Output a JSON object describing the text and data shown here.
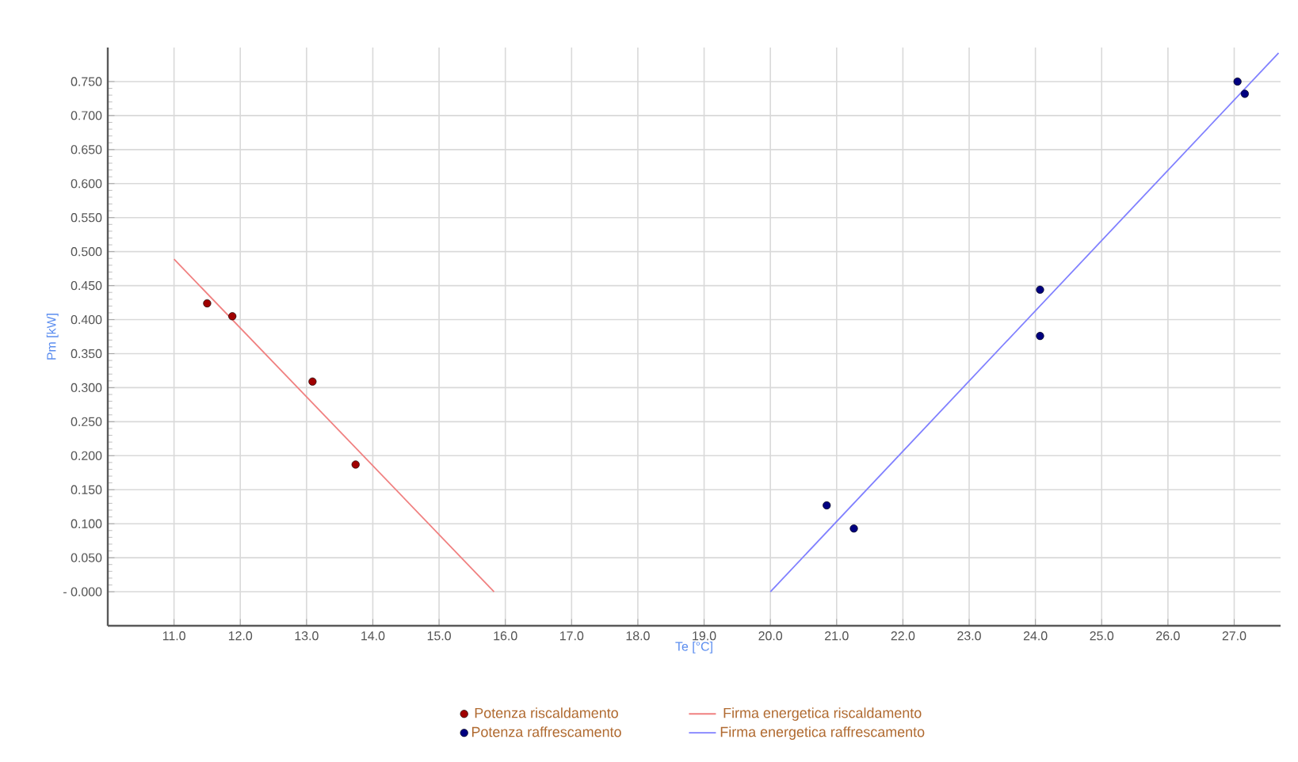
{
  "chart_data": {
    "type": "scatter",
    "xlabel": "Te [°C]",
    "ylabel": "Pm [kW]",
    "xlim": [
      10.0,
      27.7
    ],
    "ylim": [
      -0.05,
      0.8
    ],
    "xticks": [
      {
        "value": 11,
        "label": "11.0"
      },
      {
        "value": 12,
        "label": "12.0"
      },
      {
        "value": 13,
        "label": "13.0"
      },
      {
        "value": 14,
        "label": "14.0"
      },
      {
        "value": 15,
        "label": "15.0"
      },
      {
        "value": 16,
        "label": "16.0"
      },
      {
        "value": 17,
        "label": "17.0"
      },
      {
        "value": 18,
        "label": "18.0"
      },
      {
        "value": 19,
        "label": "19.0"
      },
      {
        "value": 20,
        "label": "20.0"
      },
      {
        "value": 21,
        "label": "21.0"
      },
      {
        "value": 22,
        "label": "22.0"
      },
      {
        "value": 23,
        "label": "23.0"
      },
      {
        "value": 24,
        "label": "24.0"
      },
      {
        "value": 25,
        "label": "25.0"
      },
      {
        "value": 26,
        "label": "26.0"
      },
      {
        "value": 27,
        "label": "27.0"
      }
    ],
    "yticks": [
      {
        "value": 0,
        "label": "- 0.000"
      },
      {
        "value": 0.05,
        "label": "0.050"
      },
      {
        "value": 0.1,
        "label": "0.100"
      },
      {
        "value": 0.15,
        "label": "0.150"
      },
      {
        "value": 0.2,
        "label": "0.200"
      },
      {
        "value": 0.25,
        "label": "0.250"
      },
      {
        "value": 0.3,
        "label": "0.300"
      },
      {
        "value": 0.35,
        "label": "0.350"
      },
      {
        "value": 0.4,
        "label": "0.400"
      },
      {
        "value": 0.45,
        "label": "0.450"
      },
      {
        "value": 0.5,
        "label": "0.500"
      },
      {
        "value": 0.55,
        "label": "0.550"
      },
      {
        "value": 0.6,
        "label": "0.600"
      },
      {
        "value": 0.65,
        "label": "0.650"
      },
      {
        "value": 0.7,
        "label": "0.700"
      },
      {
        "value": 0.75,
        "label": "0.750"
      }
    ],
    "grid": true,
    "legend": "bottom",
    "series": [
      {
        "name": "Potenza riscaldamento",
        "color": "#a00000",
        "x": [
          11.5,
          11.88,
          13.09,
          13.74
        ],
        "values": [
          0.424,
          0.405,
          0.309,
          0.187
        ]
      },
      {
        "name": "Firma energetica riscaldamento",
        "type": "line",
        "color": "#f08080",
        "x": [
          11.0,
          15.83
        ],
        "values": [
          0.489,
          0.0
        ]
      },
      {
        "name": "Potenza raffrescamento",
        "color": "#000080",
        "x": [
          20.85,
          21.26,
          24.07,
          24.07,
          27.05,
          27.16
        ],
        "values": [
          0.127,
          0.093,
          0.444,
          0.376,
          0.75,
          0.732
        ]
      },
      {
        "name": "Firma energetica raffrescamento",
        "type": "line",
        "color": "#8080ff",
        "x": [
          20.0,
          27.67
        ],
        "values": [
          0.0,
          0.792
        ]
      }
    ]
  }
}
